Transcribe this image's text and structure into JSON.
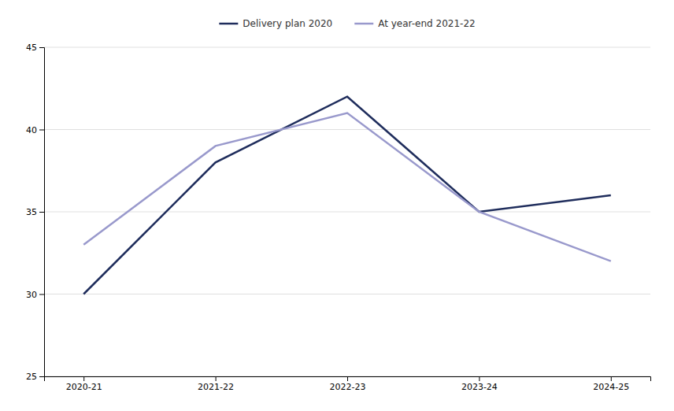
{
  "chart_data": {
    "type": "line",
    "categories": [
      "2020-21",
      "2021-22",
      "2022-23",
      "2023-24",
      "2024-25"
    ],
    "series": [
      {
        "name": "Delivery plan 2020",
        "color": "#1f2d5c",
        "values": [
          30,
          38,
          42,
          35,
          36
        ]
      },
      {
        "name": "At year-end 2021-22",
        "color": "#9999cc",
        "values": [
          33,
          39,
          41,
          35,
          32
        ]
      }
    ],
    "ylim": [
      25,
      45
    ],
    "yticks": [
      25,
      30,
      35,
      40,
      45
    ],
    "grid": true,
    "legend": "top"
  }
}
